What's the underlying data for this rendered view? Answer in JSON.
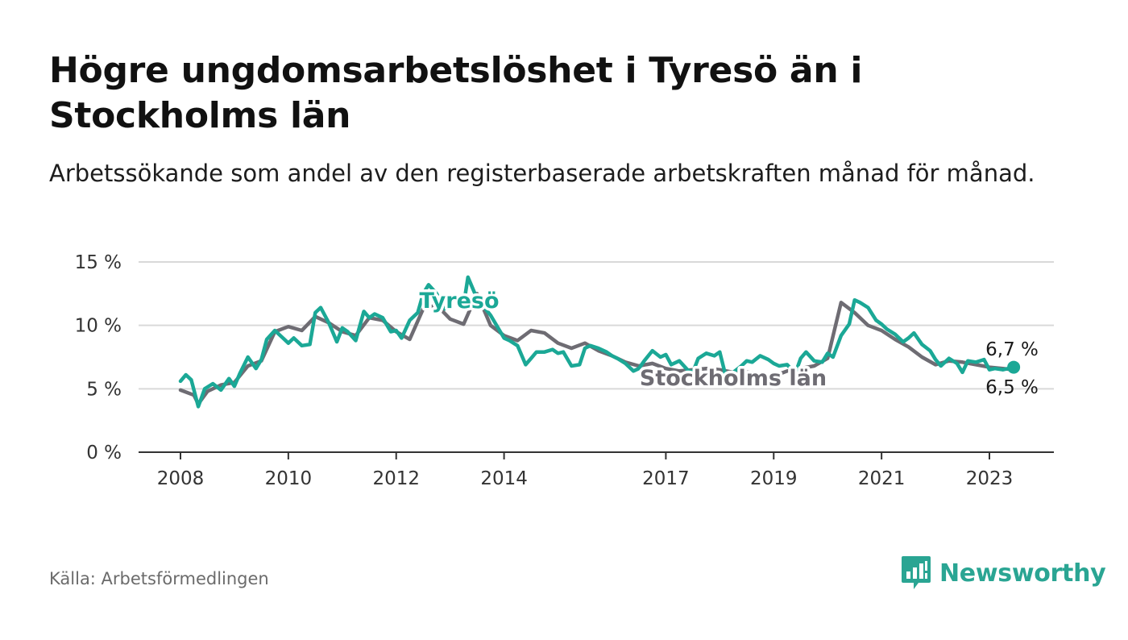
{
  "header": {
    "title": "Högre ungdomsarbetslöshet i Tyresö än i Stockholms län",
    "subtitle": "Arbetssökande som andel av den registerbaserade arbetskraften månad för månad."
  },
  "footer": {
    "source": "Källa: Arbetsförmedlingen",
    "brand": "Newsworthy"
  },
  "colors": {
    "tyreso": "#1ba896",
    "stockholm": "#6e6c73",
    "grid": "#d9d9d9",
    "axis": "#333333",
    "brand": "#2aa593"
  },
  "chart_data": {
    "type": "line",
    "title": "Högre ungdomsarbetslöshet i Tyresö än i Stockholms län",
    "xlabel": "",
    "ylabel": "",
    "ylim": [
      0,
      15
    ],
    "xlim": [
      2008.0,
      2023.45
    ],
    "y_ticks": [
      0,
      5,
      10,
      15
    ],
    "y_tick_labels": [
      "0 %",
      "5 %",
      "10 %",
      "15 %"
    ],
    "x_ticks": [
      2008,
      2010,
      2012,
      2014,
      2017,
      2019,
      2021,
      2023
    ],
    "x_tick_labels": [
      "2008",
      "2010",
      "2012",
      "2014",
      "2017",
      "2019",
      "2021",
      "2023"
    ],
    "series": [
      {
        "name": "Stockholms län",
        "label": "Stockholms län",
        "color": "#6e6c73",
        "end_label": "6,5 %",
        "x": [
          2008.0,
          2008.25,
          2008.33,
          2008.5,
          2008.75,
          2009.0,
          2009.25,
          2009.5,
          2009.75,
          2010.0,
          2010.25,
          2010.5,
          2010.75,
          2011.0,
          2011.25,
          2011.5,
          2011.75,
          2012.0,
          2012.25,
          2012.5,
          2012.75,
          2013.0,
          2013.25,
          2013.5,
          2013.75,
          2014.0,
          2014.25,
          2014.5,
          2014.75,
          2015.0,
          2015.25,
          2015.5,
          2015.75,
          2016.0,
          2016.25,
          2016.5,
          2016.75,
          2017.0,
          2017.25,
          2017.5,
          2017.75,
          2018.0,
          2018.25,
          2018.5,
          2018.75,
          2019.0,
          2019.25,
          2019.5,
          2019.75,
          2020.0,
          2020.25,
          2020.5,
          2020.75,
          2021.0,
          2021.25,
          2021.5,
          2021.75,
          2022.0,
          2022.25,
          2022.5,
          2022.75,
          2023.0,
          2023.25,
          2023.45
        ],
        "values": [
          4.9,
          4.5,
          3.8,
          4.8,
          5.3,
          5.5,
          6.8,
          7.2,
          9.5,
          9.9,
          9.6,
          10.7,
          10.2,
          9.5,
          9.2,
          10.6,
          10.4,
          9.5,
          8.9,
          11.3,
          11.6,
          10.5,
          10.1,
          12.5,
          10.0,
          9.2,
          8.8,
          9.6,
          9.4,
          8.6,
          8.2,
          8.6,
          8.0,
          7.6,
          7.1,
          6.8,
          7.0,
          6.6,
          6.4,
          6.5,
          6.6,
          6.5,
          6.3,
          6.3,
          6.2,
          6.0,
          6.4,
          6.6,
          6.8,
          7.4,
          11.8,
          11.0,
          10.0,
          9.6,
          8.9,
          8.3,
          7.5,
          6.9,
          7.2,
          7.1,
          6.9,
          6.7,
          6.6,
          6.5
        ]
      },
      {
        "name": "Tyresö",
        "label": "Tyresö",
        "color": "#1ba896",
        "end_label": "6,7 %",
        "x": [
          2008.0,
          2008.1,
          2008.2,
          2008.33,
          2008.45,
          2008.6,
          2008.75,
          2008.9,
          2009.0,
          2009.1,
          2009.25,
          2009.4,
          2009.5,
          2009.6,
          2009.75,
          2009.9,
          2010.0,
          2010.1,
          2010.25,
          2010.4,
          2010.5,
          2010.6,
          2010.75,
          2010.9,
          2011.0,
          2011.1,
          2011.25,
          2011.4,
          2011.5,
          2011.6,
          2011.75,
          2011.9,
          2012.0,
          2012.1,
          2012.25,
          2012.4,
          2012.5,
          2012.6,
          2012.75,
          2012.9,
          2013.0,
          2013.1,
          2013.25,
          2013.33,
          2013.45,
          2013.6,
          2013.75,
          2014.0,
          2014.1,
          2014.25,
          2014.4,
          2014.5,
          2014.6,
          2014.75,
          2014.9,
          2015.0,
          2015.1,
          2015.25,
          2015.4,
          2015.5,
          2015.6,
          2015.75,
          2015.9,
          2016.0,
          2016.1,
          2016.25,
          2016.4,
          2016.5,
          2016.6,
          2016.75,
          2016.9,
          2017.0,
          2017.1,
          2017.25,
          2017.4,
          2017.5,
          2017.6,
          2017.75,
          2017.9,
          2018.0,
          2018.1,
          2018.25,
          2018.4,
          2018.5,
          2018.6,
          2018.75,
          2018.9,
          2019.0,
          2019.1,
          2019.25,
          2019.4,
          2019.5,
          2019.6,
          2019.75,
          2019.9,
          2020.0,
          2020.1,
          2020.25,
          2020.4,
          2020.5,
          2020.6,
          2020.75,
          2020.9,
          2021.0,
          2021.1,
          2021.25,
          2021.4,
          2021.5,
          2021.6,
          2021.75,
          2021.9,
          2022.0,
          2022.1,
          2022.25,
          2022.4,
          2022.5,
          2022.6,
          2022.75,
          2022.9,
          2023.0,
          2023.1,
          2023.25,
          2023.45
        ],
        "values": [
          5.6,
          6.1,
          5.7,
          3.6,
          5.0,
          5.4,
          4.9,
          5.8,
          5.2,
          6.2,
          7.5,
          6.6,
          7.3,
          8.9,
          9.6,
          9.0,
          8.6,
          9.0,
          8.4,
          8.5,
          11.0,
          11.4,
          10.2,
          8.7,
          9.8,
          9.5,
          8.8,
          11.1,
          10.6,
          10.9,
          10.6,
          9.5,
          9.6,
          9.0,
          10.4,
          11.0,
          12.5,
          13.2,
          12.5,
          11.3,
          12.3,
          12.0,
          11.6,
          13.8,
          12.6,
          11.6,
          10.8,
          9.0,
          8.8,
          8.4,
          6.9,
          7.4,
          7.9,
          7.9,
          8.1,
          7.8,
          7.9,
          6.8,
          6.9,
          8.2,
          8.4,
          8.2,
          7.9,
          7.6,
          7.4,
          7.0,
          6.4,
          6.6,
          7.2,
          8.0,
          7.5,
          7.7,
          6.9,
          7.2,
          6.5,
          6.3,
          7.4,
          7.8,
          7.6,
          7.9,
          6.2,
          6.3,
          6.8,
          7.2,
          7.1,
          7.6,
          7.3,
          7.0,
          6.8,
          6.9,
          6.2,
          7.4,
          7.9,
          7.2,
          7.1,
          7.8,
          7.5,
          9.2,
          10.1,
          12.0,
          11.8,
          11.4,
          10.4,
          10.1,
          9.7,
          9.3,
          8.7,
          9.0,
          9.4,
          8.5,
          8.0,
          7.3,
          6.8,
          7.4,
          7.0,
          6.3,
          7.2,
          7.1,
          7.3,
          6.5,
          6.6,
          6.5,
          6.7
        ]
      }
    ]
  }
}
